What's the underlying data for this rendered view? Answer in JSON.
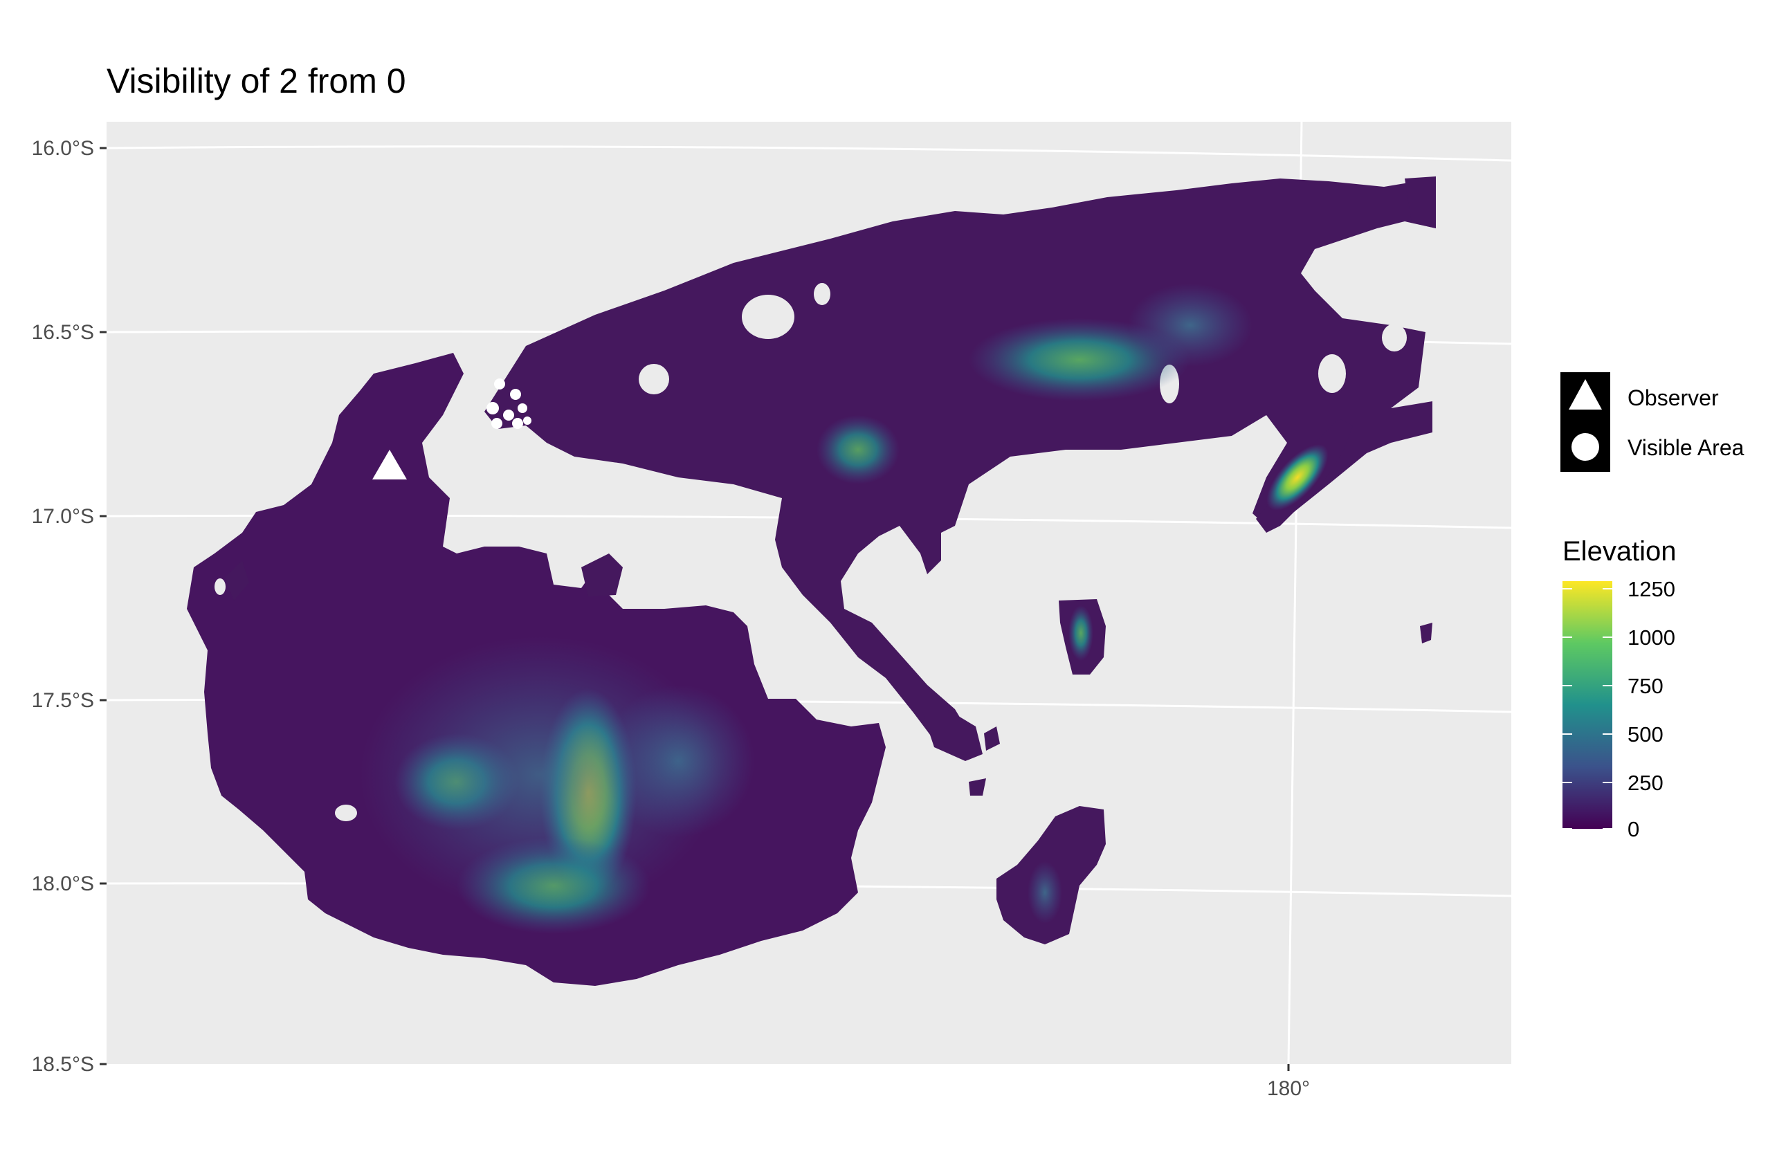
{
  "title": "Visibility of 2 from 0",
  "map": {
    "type": "raster-map",
    "y_axis_ticks": [
      "16.0°S",
      "16.5°S",
      "17.0°S",
      "17.5°S",
      "18.0°S",
      "18.5°S"
    ],
    "x_axis_ticks": [
      "180°"
    ],
    "background_color": "#ebebeb",
    "grid_color": "#ffffff"
  },
  "legend": {
    "shape_items": [
      {
        "label": "Observer",
        "icon": "triangle-icon"
      },
      {
        "label": "Visible Area",
        "icon": "circle-icon"
      }
    ],
    "colorbar": {
      "title": "Elevation",
      "breaks": [
        "1250",
        "1000",
        "750",
        "500",
        "250",
        "0"
      ],
      "range": [
        0,
        1300
      ],
      "palette": [
        "#440154",
        "#3b528b",
        "#21918c",
        "#5ec962",
        "#fde725"
      ]
    }
  }
}
